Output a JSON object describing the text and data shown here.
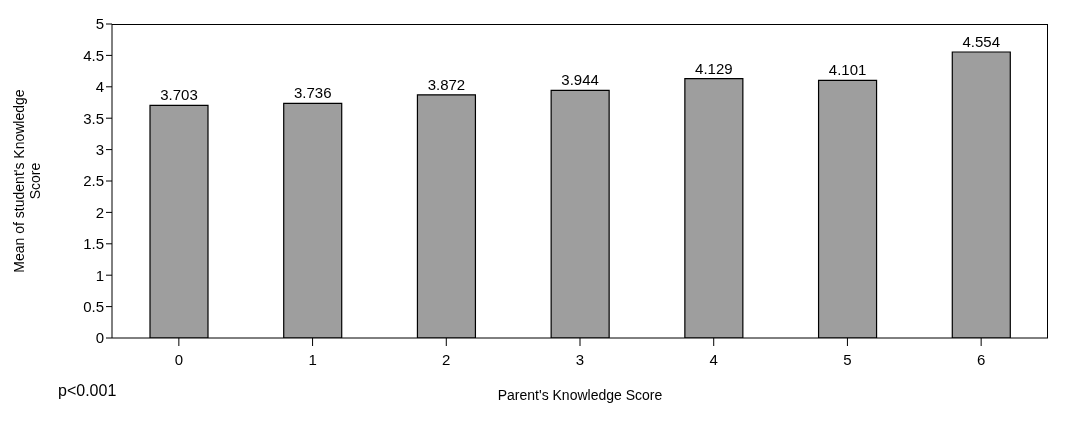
{
  "chart_data": {
    "type": "bar",
    "xlabel": "Parent's Knowledge Score",
    "ylabel": "Mean of student's Knowledge Score",
    "categories": [
      "0",
      "1",
      "2",
      "3",
      "4",
      "5",
      "6"
    ],
    "values": [
      3.703,
      3.736,
      3.872,
      3.944,
      4.129,
      4.101,
      4.554
    ],
    "color": "#9e9e9e",
    "ylim": [
      0,
      5
    ],
    "yticks": [
      0,
      0.5,
      1,
      1.5,
      2,
      2.5,
      3,
      3.5,
      4,
      4.5,
      5
    ],
    "data_labels": true,
    "grid": false,
    "annotations": [
      "p<0.001"
    ]
  }
}
